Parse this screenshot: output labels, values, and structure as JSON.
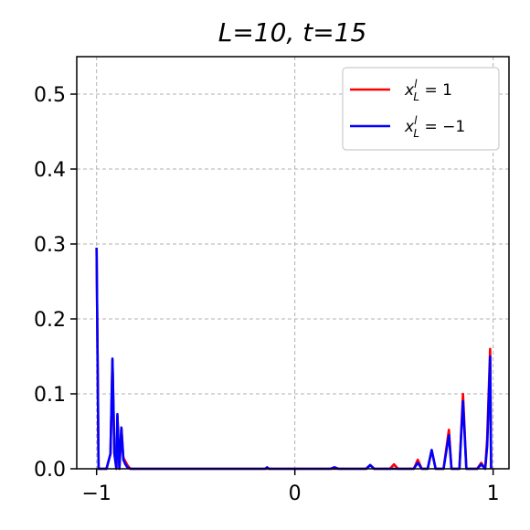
{
  "chart_data": {
    "type": "line",
    "title": "L=10, t=15",
    "xlabel": "",
    "ylabel": "",
    "xlim": [
      -1.1,
      1.08
    ],
    "ylim": [
      0,
      0.55
    ],
    "xticks": [
      -1,
      0,
      1
    ],
    "xtick_labels": [
      "−1",
      "0",
      "1"
    ],
    "yticks": [
      0.0,
      0.1,
      0.2,
      0.3,
      0.4,
      0.5
    ],
    "ytick_labels": [
      "0.0",
      "0.1",
      "0.2",
      "0.3",
      "0.4",
      "0.5"
    ],
    "grid": true,
    "legend_position": "top-right",
    "series": [
      {
        "name": "x_L^l = 1",
        "legend_main": "x",
        "legend_sup": "l",
        "legend_sub": "L",
        "legend_rest": " = 1",
        "color": "#ff0000",
        "points": [
          [
            -1.0,
            0.295
          ],
          [
            -0.99,
            0.0
          ],
          [
            -0.95,
            0.0
          ],
          [
            -0.93,
            0.02
          ],
          [
            -0.92,
            0.145
          ],
          [
            -0.91,
            0.02
          ],
          [
            -0.9,
            0.0
          ],
          [
            -0.895,
            0.07
          ],
          [
            -0.885,
            0.0
          ],
          [
            -0.875,
            0.055
          ],
          [
            -0.865,
            0.015
          ],
          [
            -0.855,
            0.01
          ],
          [
            -0.845,
            0.005
          ],
          [
            -0.83,
            0.0
          ],
          [
            -0.1,
            0.0
          ],
          [
            0.36,
            0.0
          ],
          [
            0.38,
            0.005
          ],
          [
            0.4,
            0.0
          ],
          [
            0.48,
            0.0
          ],
          [
            0.5,
            0.006
          ],
          [
            0.52,
            0.0
          ],
          [
            0.6,
            0.0
          ],
          [
            0.62,
            0.012
          ],
          [
            0.64,
            0.0
          ],
          [
            0.67,
            0.0
          ],
          [
            0.69,
            0.025
          ],
          [
            0.71,
            0.0
          ],
          [
            0.75,
            0.0
          ],
          [
            0.777,
            0.052
          ],
          [
            0.79,
            0.0
          ],
          [
            0.83,
            0.0
          ],
          [
            0.848,
            0.1
          ],
          [
            0.865,
            0.0
          ],
          [
            0.92,
            0.0
          ],
          [
            0.94,
            0.008
          ],
          [
            0.96,
            0.0
          ],
          [
            0.97,
            0.04
          ],
          [
            0.985,
            0.16
          ],
          [
            0.99,
            0.0
          ]
        ]
      },
      {
        "name": "x_L^l = -1",
        "legend_main": "x",
        "legend_sup": "l",
        "legend_sub": "L",
        "legend_rest": " = −1",
        "color": "#0000ff",
        "points": [
          [
            -1.0,
            0.295
          ],
          [
            -0.99,
            0.0
          ],
          [
            -0.95,
            0.0
          ],
          [
            -0.93,
            0.02
          ],
          [
            -0.92,
            0.147
          ],
          [
            -0.91,
            0.02
          ],
          [
            -0.9,
            0.0
          ],
          [
            -0.895,
            0.073
          ],
          [
            -0.885,
            0.0
          ],
          [
            -0.875,
            0.055
          ],
          [
            -0.865,
            0.012
          ],
          [
            -0.855,
            0.006
          ],
          [
            -0.845,
            0.002
          ],
          [
            -0.83,
            0.0
          ],
          [
            -0.15,
            0.0
          ],
          [
            -0.14,
            0.002
          ],
          [
            -0.13,
            0.0
          ],
          [
            0.18,
            0.0
          ],
          [
            0.2,
            0.002
          ],
          [
            0.22,
            0.0
          ],
          [
            0.36,
            0.0
          ],
          [
            0.38,
            0.005
          ],
          [
            0.4,
            0.0
          ],
          [
            0.6,
            0.0
          ],
          [
            0.62,
            0.008
          ],
          [
            0.64,
            0.0
          ],
          [
            0.67,
            0.0
          ],
          [
            0.69,
            0.025
          ],
          [
            0.71,
            0.0
          ],
          [
            0.75,
            0.0
          ],
          [
            0.777,
            0.045
          ],
          [
            0.79,
            0.0
          ],
          [
            0.83,
            0.0
          ],
          [
            0.848,
            0.09
          ],
          [
            0.865,
            0.0
          ],
          [
            0.92,
            0.0
          ],
          [
            0.94,
            0.006
          ],
          [
            0.96,
            0.0
          ],
          [
            0.97,
            0.03
          ],
          [
            0.985,
            0.15
          ],
          [
            0.99,
            0.0
          ]
        ]
      }
    ]
  }
}
